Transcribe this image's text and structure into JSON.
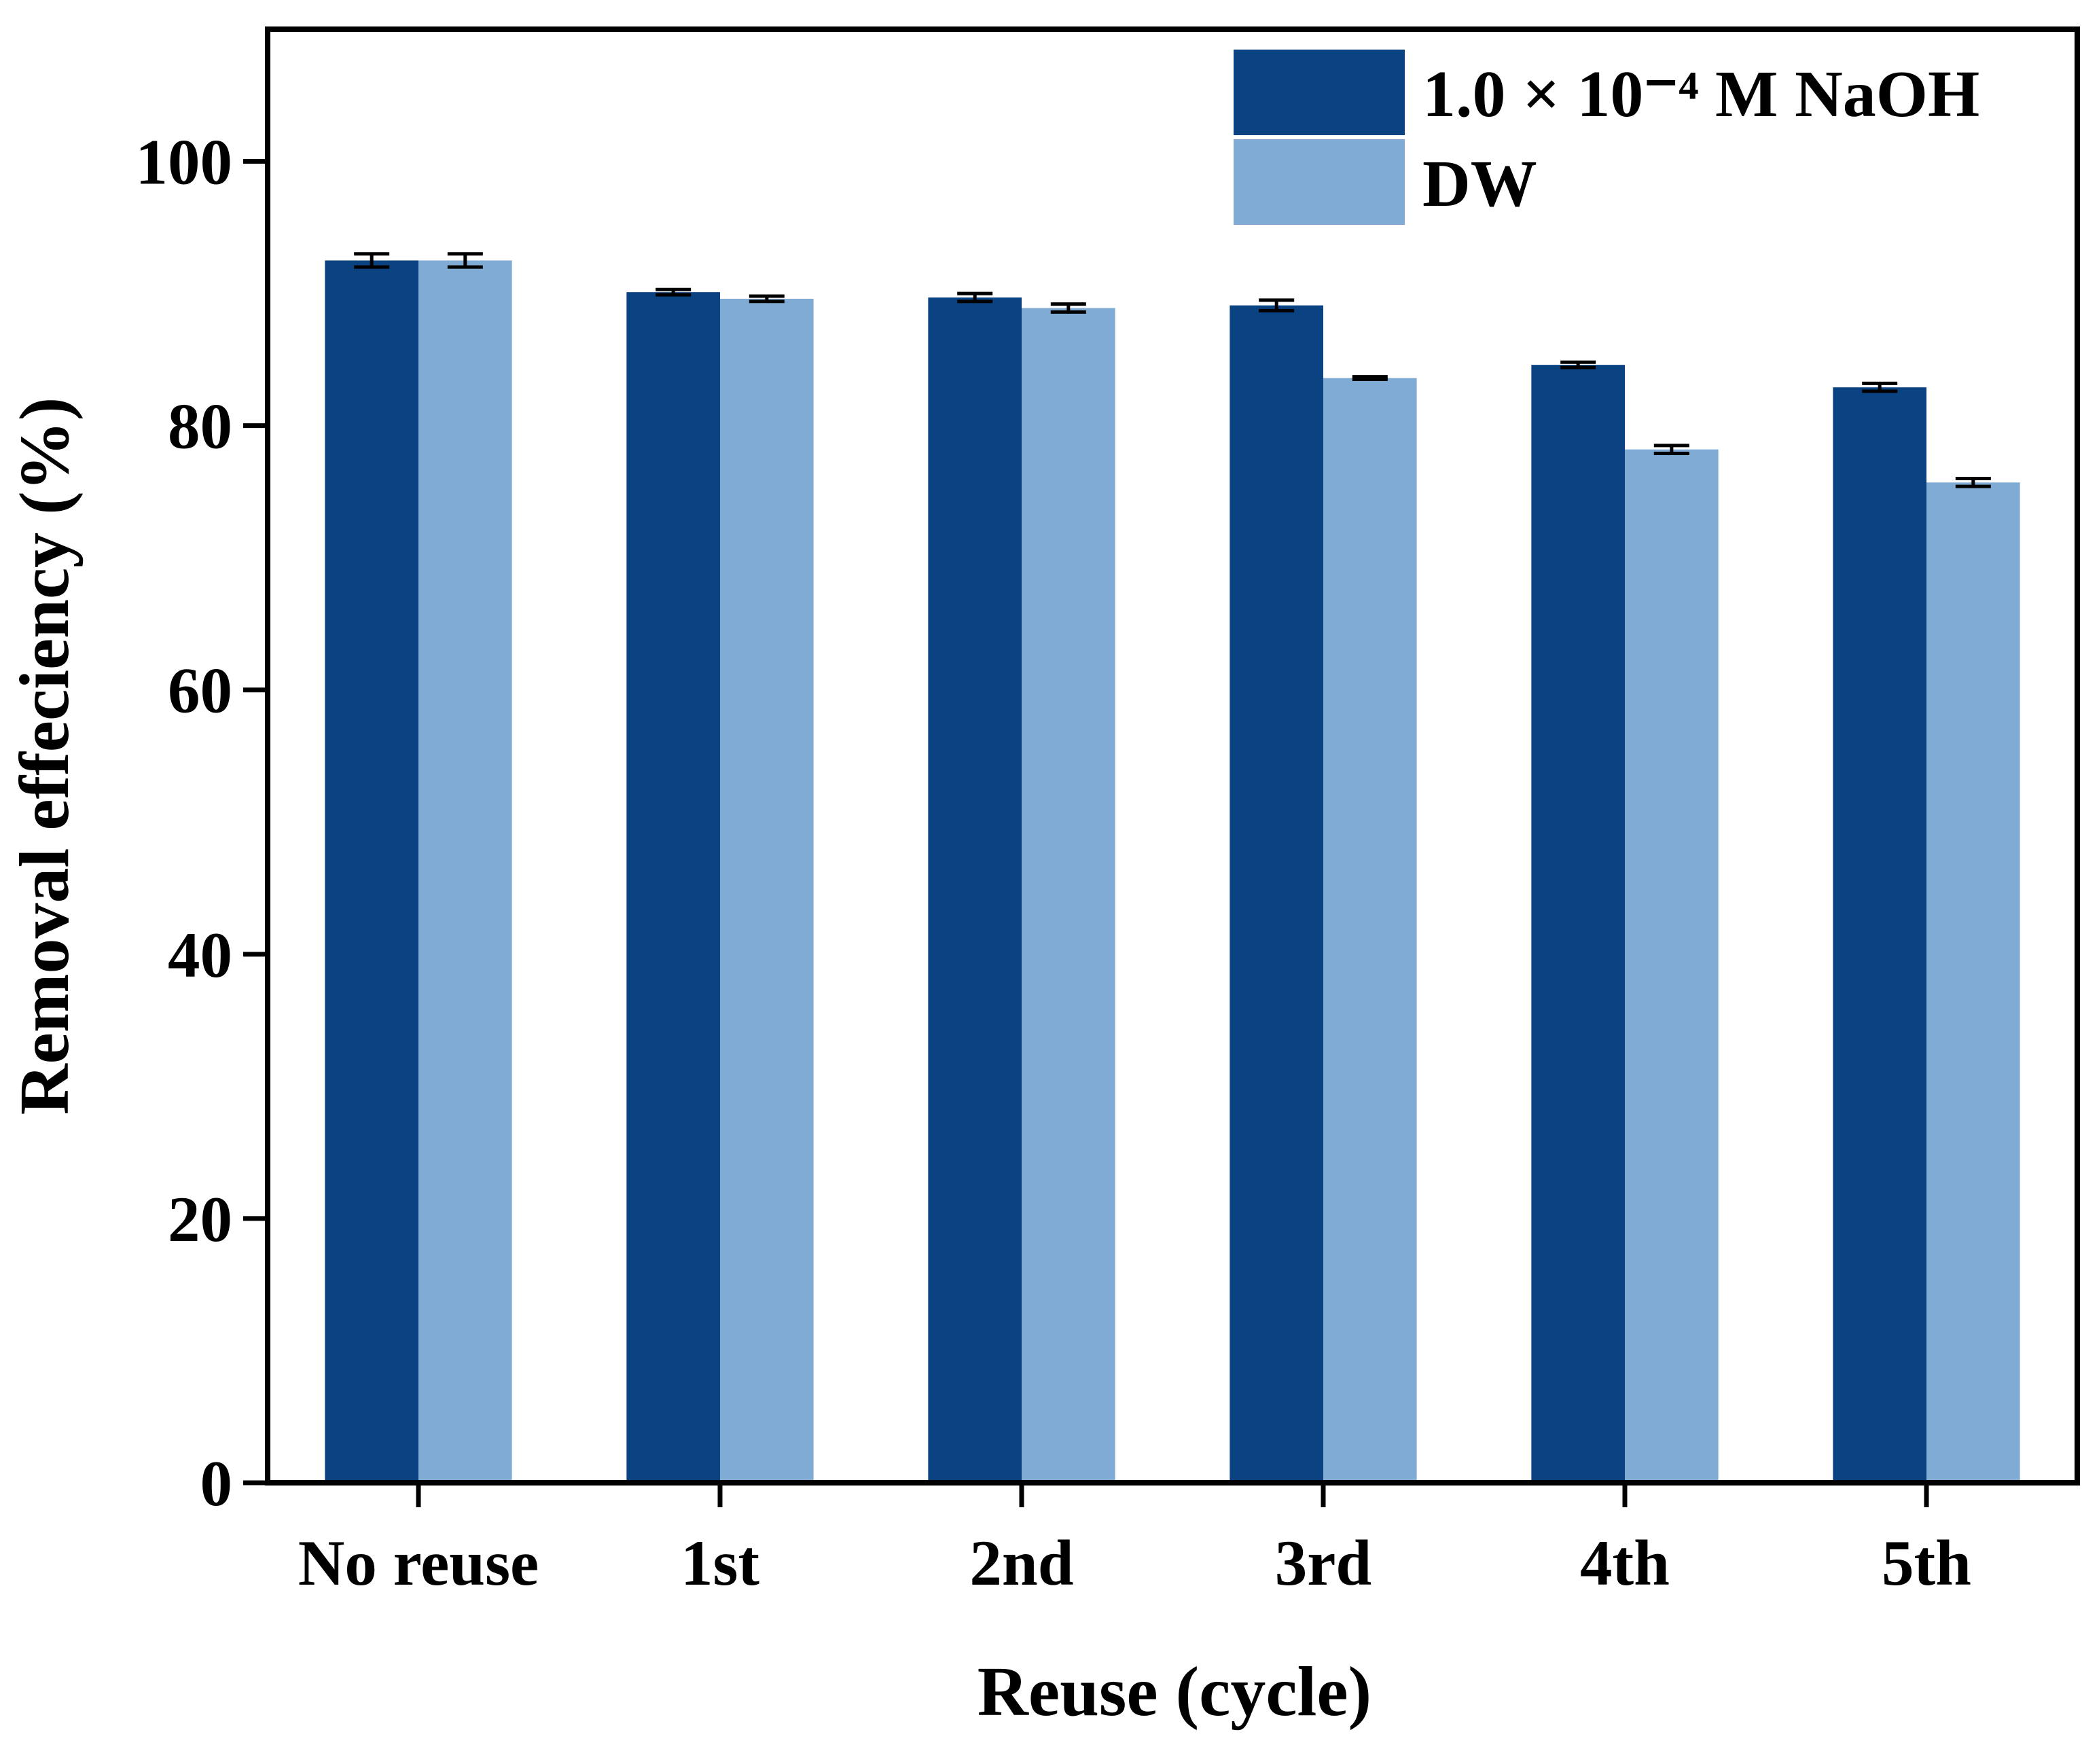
{
  "chart_data": {
    "type": "bar",
    "categories": [
      "No reuse",
      "1st",
      "2nd",
      "3rd",
      "4th",
      "5th"
    ],
    "series": [
      {
        "name": "1.0 × 10⁻⁴ M NaOH",
        "color": "#0b4382",
        "values": [
          92.5,
          90.1,
          89.7,
          89.1,
          84.6,
          82.9
        ],
        "errors": [
          0.5,
          0.2,
          0.3,
          0.4,
          0.2,
          0.3
        ]
      },
      {
        "name": "DW",
        "color": "#80abd4",
        "values": [
          92.5,
          89.6,
          88.9,
          83.6,
          78.2,
          75.7
        ],
        "errors": [
          0.5,
          0.2,
          0.3,
          0.1,
          0.3,
          0.3
        ]
      }
    ],
    "xlabel": "Reuse (cycle)",
    "ylabel": "Removal effeciency (%)",
    "ylim": [
      0,
      110
    ],
    "yticks": [
      0,
      20,
      40,
      60,
      80,
      100
    ],
    "legend": "upper right",
    "grid": false
  }
}
